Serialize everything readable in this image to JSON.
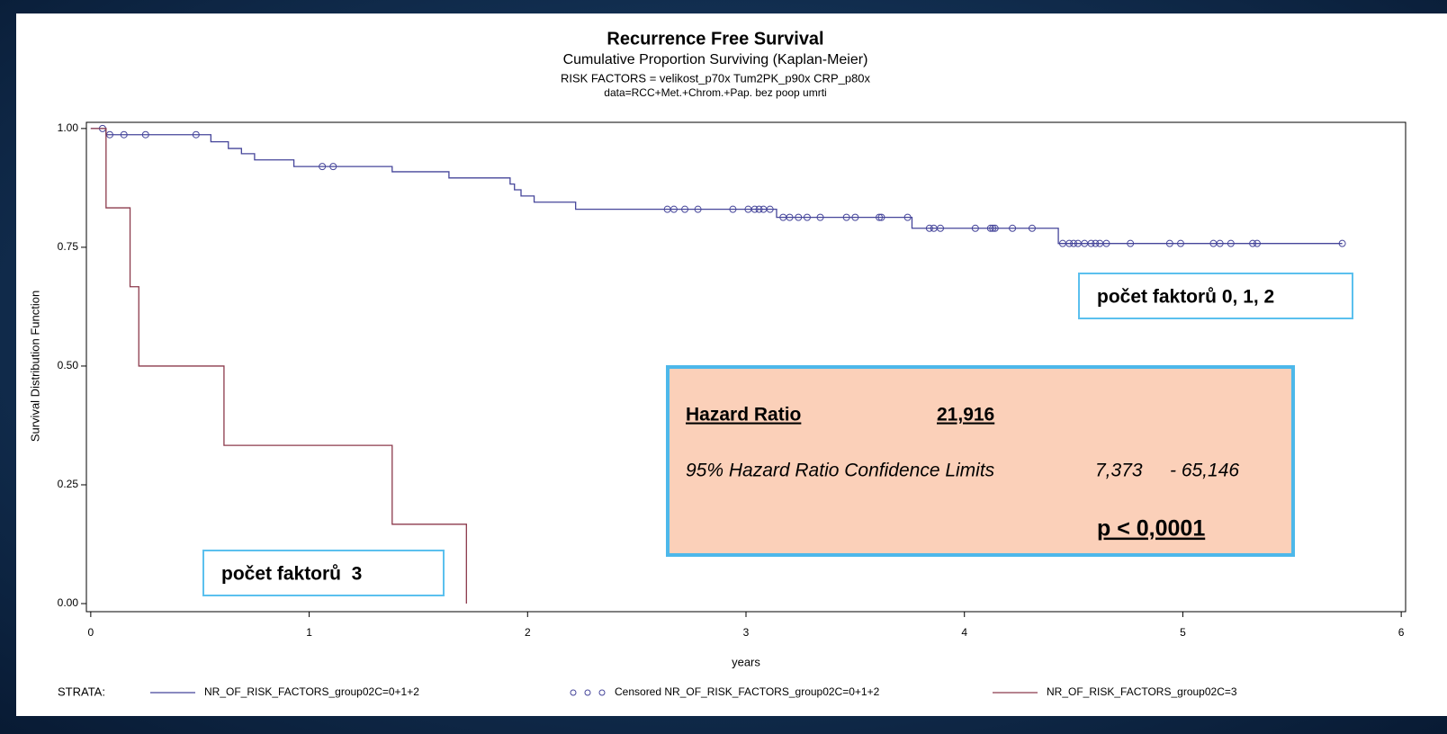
{
  "chart_data": {
    "type": "line",
    "step": "post",
    "title": "Recurrence Free Survival",
    "subtitle": "Cumulative Proportion Surviving (Kaplan-Meier)",
    "subtitle_lines": [
      "RISK FACTORS = velikost_p70x Tum2PK_p90x CRP_p80x",
      "data=RCC+Met.+Chrom.+Pap. bez poop umrti"
    ],
    "x_label": "years",
    "y_label": "Survival Distribution Function",
    "legend_title": "STRATA:",
    "xlim": [
      -0.02,
      6.02
    ],
    "xticks": [
      0,
      1,
      2,
      3,
      4,
      5,
      6
    ],
    "ylim": [
      -0.017,
      1.013
    ],
    "yticks": [
      {
        "value": 0,
        "label": "0.00"
      },
      {
        "value": 0.25,
        "label": "0.25"
      },
      {
        "value": 0.5,
        "label": "0.50"
      },
      {
        "value": 0.75,
        "label": "0.75"
      },
      {
        "value": 1,
        "label": "1.00"
      }
    ],
    "series": [
      {
        "name": "NR_OF_RISK_FACTORS_group02C=0+1+2",
        "color": "#45459a",
        "marker": "none",
        "x": [
          0,
          0.07,
          0.55,
          0.63,
          0.69,
          0.75,
          0.93,
          1.38,
          1.64,
          1.92,
          1.94,
          1.97,
          2.03,
          2.22,
          3.14,
          3.76,
          4.43,
          5.73
        ],
        "values": [
          1,
          0.987,
          0.972,
          0.958,
          0.947,
          0.934,
          0.92,
          0.909,
          0.896,
          0.883,
          0.871,
          0.858,
          0.845,
          0.83,
          0.813,
          0.79,
          0.758,
          0.758
        ]
      },
      {
        "name": "Censored NR_OF_RISK_FACTORS_group02C=0+1+2",
        "color": "#45459a",
        "marker": "circle",
        "x": [
          0.054,
          0.087,
          0.152,
          0.251,
          0.482,
          1.06,
          1.11,
          2.64,
          2.67,
          2.72,
          2.78,
          2.94,
          3.01,
          3.04,
          3.06,
          3.08,
          3.11,
          3.17,
          3.2,
          3.24,
          3.28,
          3.34,
          3.46,
          3.5,
          3.61,
          3.62,
          3.74,
          3.84,
          3.86,
          3.89,
          4.05,
          4.12,
          4.13,
          4.14,
          4.22,
          4.31,
          4.45,
          4.48,
          4.5,
          4.52,
          4.55,
          4.58,
          4.6,
          4.62,
          4.65,
          4.76,
          4.94,
          4.99,
          5.14,
          5.17,
          5.22,
          5.32,
          5.34,
          5.73
        ],
        "values": [
          1,
          0.987,
          0.987,
          0.987,
          0.987,
          0.92,
          0.92,
          0.83,
          0.83,
          0.83,
          0.83,
          0.83,
          0.83,
          0.83,
          0.83,
          0.83,
          0.83,
          0.813,
          0.813,
          0.813,
          0.813,
          0.813,
          0.813,
          0.813,
          0.813,
          0.813,
          0.813,
          0.79,
          0.79,
          0.79,
          0.79,
          0.79,
          0.79,
          0.79,
          0.79,
          0.79,
          0.758,
          0.758,
          0.758,
          0.758,
          0.758,
          0.758,
          0.758,
          0.758,
          0.758,
          0.758,
          0.758,
          0.758,
          0.758,
          0.758,
          0.758,
          0.758,
          0.758,
          0.758
        ]
      },
      {
        "name": "NR_OF_RISK_FACTORS_group02C=3",
        "color": "#8c3a4c",
        "marker": "none",
        "x": [
          0,
          0.07,
          0.18,
          0.22,
          0.61,
          1.38,
          1.72
        ],
        "values": [
          1,
          0.833,
          0.667,
          0.5,
          0.333,
          0.167,
          0
        ]
      }
    ],
    "annotations": [
      "počet faktorů 0, 1, 2",
      "počet faktorů  3"
    ],
    "hazard_box": {
      "label": "Hazard Ratio",
      "value": "21,916",
      "ci_label": "95% Hazard Ratio Confidence Limits",
      "ci_low": "7,373",
      "ci_high": "- 65,146",
      "p": "p < 0,0001"
    }
  }
}
